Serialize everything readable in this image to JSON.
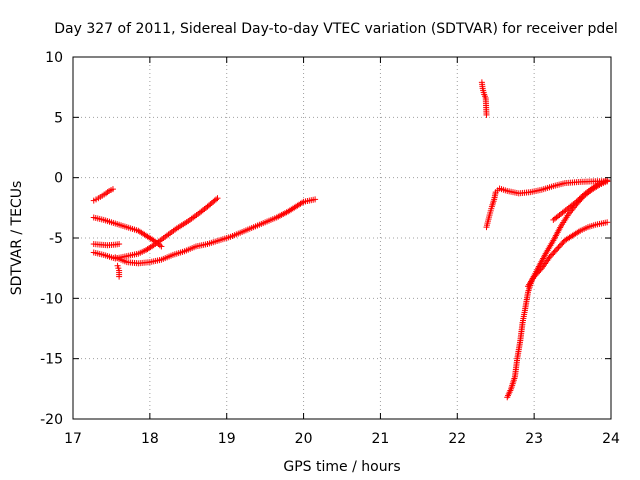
{
  "chart_data": {
    "type": "scatter",
    "title": "Day 327 of 2011, Sidereal Day-to-day VTEC variation (SDTVAR) for receiver pdel",
    "xlabel": "GPS time / hours",
    "ylabel": "SDTVAR / TECUs",
    "xlim": [
      17,
      24
    ],
    "ylim": [
      -20,
      10
    ],
    "xticks": [
      17,
      18,
      19,
      20,
      21,
      22,
      23,
      24
    ],
    "yticks": [
      10,
      5,
      0,
      -5,
      -10,
      -15,
      -20
    ],
    "grid": true,
    "marker": "+",
    "color": "#ff0000",
    "series": [
      {
        "points": [
          [
            17.27,
            -1.9
          ],
          [
            17.33,
            -1.7
          ],
          [
            17.38,
            -1.5
          ],
          [
            17.43,
            -1.3
          ],
          [
            17.47,
            -1.1
          ],
          [
            17.52,
            -0.95
          ]
        ]
      },
      {
        "points": [
          [
            17.27,
            -3.3
          ],
          [
            17.4,
            -3.5
          ],
          [
            17.55,
            -3.8
          ],
          [
            17.7,
            -4.1
          ],
          [
            17.85,
            -4.4
          ],
          [
            17.95,
            -4.8
          ],
          [
            18.05,
            -5.2
          ],
          [
            18.15,
            -5.7
          ]
        ]
      },
      {
        "points": [
          [
            17.27,
            -5.5
          ],
          [
            17.35,
            -5.55
          ],
          [
            17.45,
            -5.6
          ],
          [
            17.55,
            -5.55
          ],
          [
            17.6,
            -5.5
          ]
        ]
      },
      {
        "points": [
          [
            17.27,
            -6.2
          ],
          [
            17.4,
            -6.4
          ],
          [
            17.55,
            -6.7
          ],
          [
            17.7,
            -6.5
          ],
          [
            17.85,
            -6.3
          ],
          [
            17.95,
            -6.0
          ],
          [
            18.05,
            -5.6
          ],
          [
            18.2,
            -4.9
          ],
          [
            18.35,
            -4.2
          ],
          [
            18.5,
            -3.6
          ],
          [
            18.65,
            -2.9
          ],
          [
            18.75,
            -2.4
          ],
          [
            18.88,
            -1.7
          ]
        ]
      },
      {
        "points": [
          [
            17.55,
            -6.6
          ],
          [
            17.7,
            -7.0
          ],
          [
            17.85,
            -7.1
          ],
          [
            18.0,
            -7.0
          ],
          [
            18.15,
            -6.8
          ],
          [
            18.3,
            -6.4
          ],
          [
            18.45,
            -6.1
          ],
          [
            18.6,
            -5.7
          ],
          [
            18.75,
            -5.5
          ],
          [
            18.9,
            -5.2
          ],
          [
            19.05,
            -4.9
          ],
          [
            19.2,
            -4.5
          ],
          [
            19.35,
            -4.1
          ],
          [
            19.5,
            -3.7
          ],
          [
            19.65,
            -3.3
          ],
          [
            19.8,
            -2.8
          ],
          [
            19.9,
            -2.4
          ],
          [
            20.0,
            -2.0
          ],
          [
            20.15,
            -1.8
          ]
        ]
      },
      {
        "points": [
          [
            17.58,
            -7.3
          ],
          [
            17.6,
            -7.7
          ],
          [
            17.6,
            -8.2
          ]
        ]
      },
      {
        "points": [
          [
            22.32,
            7.9
          ],
          [
            22.33,
            7.4
          ],
          [
            22.35,
            6.9
          ],
          [
            22.37,
            6.6
          ],
          [
            22.38,
            5.2
          ]
        ]
      },
      {
        "points": [
          [
            22.38,
            -4.1
          ],
          [
            22.42,
            -3.1
          ],
          [
            22.45,
            -2.4
          ],
          [
            22.48,
            -1.8
          ],
          [
            22.5,
            -1.2
          ],
          [
            22.55,
            -0.9
          ],
          [
            22.65,
            -1.1
          ],
          [
            22.8,
            -1.3
          ],
          [
            22.95,
            -1.2
          ],
          [
            23.1,
            -1.0
          ],
          [
            23.25,
            -0.7
          ],
          [
            23.4,
            -0.45
          ],
          [
            23.6,
            -0.35
          ],
          [
            23.8,
            -0.3
          ],
          [
            23.95,
            -0.3
          ]
        ]
      },
      {
        "points": [
          [
            22.65,
            -18.2
          ],
          [
            22.7,
            -17.5
          ],
          [
            22.75,
            -16.5
          ],
          [
            22.78,
            -15.0
          ],
          [
            22.82,
            -13.5
          ],
          [
            22.85,
            -12.0
          ],
          [
            22.88,
            -11.0
          ],
          [
            22.92,
            -9.5
          ],
          [
            22.97,
            -8.5
          ],
          [
            23.05,
            -7.5
          ],
          [
            23.15,
            -6.3
          ],
          [
            23.25,
            -5.2
          ],
          [
            23.35,
            -4.0
          ],
          [
            23.45,
            -3.0
          ],
          [
            23.55,
            -2.2
          ],
          [
            23.65,
            -1.5
          ],
          [
            23.75,
            -1.0
          ],
          [
            23.85,
            -0.6
          ],
          [
            23.95,
            -0.3
          ]
        ]
      },
      {
        "points": [
          [
            22.92,
            -9.0
          ],
          [
            23.0,
            -8.2
          ],
          [
            23.1,
            -7.5
          ],
          [
            23.2,
            -6.6
          ],
          [
            23.3,
            -5.9
          ],
          [
            23.4,
            -5.2
          ],
          [
            23.5,
            -4.8
          ],
          [
            23.6,
            -4.4
          ],
          [
            23.7,
            -4.1
          ],
          [
            23.8,
            -3.9
          ],
          [
            23.95,
            -3.7
          ]
        ]
      },
      {
        "points": [
          [
            23.25,
            -3.5
          ],
          [
            23.35,
            -3.0
          ],
          [
            23.45,
            -2.5
          ],
          [
            23.55,
            -2.0
          ],
          [
            23.65,
            -1.4
          ],
          [
            23.75,
            -0.9
          ],
          [
            23.85,
            -0.5
          ],
          [
            23.95,
            -0.2
          ]
        ]
      }
    ]
  }
}
